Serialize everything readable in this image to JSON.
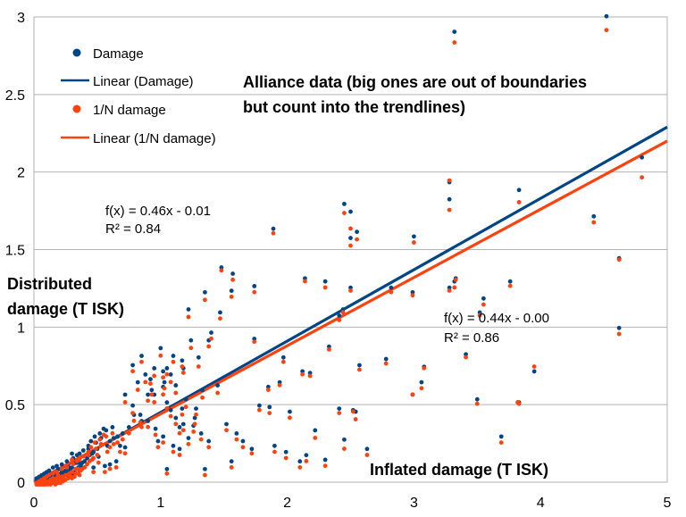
{
  "chart_data": {
    "type": "scatter",
    "title": "Alliance data (big ones are out of boundaries but count into the trendlines)",
    "title_lines": [
      "Alliance data (big ones are out of boundaries",
      "but count into the trendlines)"
    ],
    "xlabel": "Inflated damage (T ISK)",
    "ylabel_lines": [
      "Distributed",
      "damage (T ISK)"
    ],
    "xlim": [
      0,
      5
    ],
    "ylim": [
      0,
      3
    ],
    "x_ticks": [
      "0",
      "1",
      "2",
      "3",
      "4",
      "5"
    ],
    "y_ticks": [
      "0",
      "0.5",
      "1",
      "1.5",
      "2",
      "2.5",
      "3"
    ],
    "grid": "horizontal",
    "legend_position": "top-left",
    "legend": [
      {
        "label": "Damage",
        "kind": "marker",
        "color": "#004586"
      },
      {
        "label": "Linear (Damage)",
        "kind": "line",
        "color": "#004586"
      },
      {
        "label": "1/N damage",
        "kind": "marker",
        "color": "#ff420e"
      },
      {
        "label": "Linear (1/N damage)",
        "kind": "line",
        "color": "#ff420e"
      }
    ],
    "series": [
      {
        "name": "Damage",
        "color": "#004586",
        "x": [
          4.52,
          3.32,
          4.8,
          3.28,
          3.83,
          3.28,
          2.45,
          2.5,
          4.42,
          1.89,
          2.55,
          2.5,
          3.0,
          4.62,
          3.33,
          1.48,
          1.57,
          3.76,
          3.32,
          3.52,
          1.56,
          2.3,
          2.14,
          2.99,
          2.82,
          2.5,
          1.74,
          3.28,
          3.55,
          2.44,
          2.41,
          4.62,
          2.33,
          1.97,
          1.74,
          3.41,
          3.08,
          3.95,
          2.78,
          2.57,
          2.12,
          2.18,
          3.06,
          2.99,
          1.85,
          1.94,
          1.78,
          2.02,
          1.86,
          2.41,
          2.52,
          3.83,
          3.5,
          3.82,
          2.54,
          1.3,
          1.38,
          1.4,
          1.24,
          1.1,
          1.18,
          1.02,
          0.92,
          1.03,
          1.35,
          1.22,
          1.47,
          0.85,
          0.78,
          1.17,
          1.05,
          0.93,
          0.9,
          1.05,
          1.17,
          1.27,
          1.52,
          1.15,
          1.6,
          1.65,
          1.72,
          1.99,
          1.9,
          2.15,
          2.22,
          2.45,
          2.63,
          3.69,
          2.1,
          2.3,
          1.56,
          1.22,
          1.35,
          0.98,
          1.05,
          0.79,
          0.85,
          0.75,
          0.7,
          0.66,
          0.63,
          0.6,
          0.58,
          0.72,
          0.68,
          0.5,
          0.47,
          0.46,
          0.44,
          0.42,
          0.4,
          0.38,
          0.37,
          0.35,
          0.33,
          0.32,
          0.3,
          0.29,
          0.28,
          0.27,
          0.25,
          0.24,
          0.23,
          0.22,
          0.21,
          0.2,
          0.19,
          0.18,
          0.17,
          0.16,
          0.15,
          0.14,
          0.13,
          0.12,
          0.11,
          0.1,
          0.09,
          0.08,
          0.07,
          0.06,
          0.05,
          0.04,
          0.03,
          0.02,
          0.55,
          0.52,
          0.48,
          0.45,
          0.62,
          0.57,
          0.53,
          0.49,
          0.43,
          0.39,
          0.36,
          0.34,
          0.31,
          0.26,
          0.22,
          0.18,
          0.15,
          0.12,
          0.1,
          0.08,
          0.06,
          0.04,
          0.03,
          0.02,
          0.65,
          0.6,
          0.56,
          0.51,
          0.47,
          0.43,
          0.4,
          0.36,
          0.33,
          0.3,
          0.28,
          0.25,
          0.23,
          0.21,
          0.19,
          0.17,
          0.15,
          0.13,
          0.11,
          0.09,
          0.07,
          0.05,
          0.03,
          0.82,
          0.88,
          0.95,
          1.0,
          1.08,
          1.12,
          1.2,
          1.28,
          1.33,
          1.45,
          0.72,
          0.78,
          0.84,
          0.9,
          0.96,
          1.02,
          1.1,
          1.15,
          0.95,
          1.02,
          1.08,
          1.12,
          1.18,
          1.26,
          1.32,
          1.38,
          0.35,
          0.3,
          0.26,
          0.22,
          0.18,
          0.14,
          0.1,
          0.07
        ],
        "y": [
          2.99,
          2.89,
          2.08,
          1.92,
          1.87,
          1.81,
          1.78,
          1.73,
          1.7,
          1.62,
          1.6,
          1.56,
          1.57,
          1.43,
          1.3,
          1.37,
          1.33,
          1.28,
          1.28,
          1.08,
          1.22,
          1.28,
          1.3,
          1.21,
          1.24,
          1.24,
          1.25,
          1.24,
          1.17,
          1.1,
          1.06,
          0.98,
          0.86,
          0.79,
          0.91,
          0.81,
          0.73,
          0.7,
          0.78,
          0.74,
          0.7,
          0.69,
          0.63,
          0.55,
          0.6,
          0.63,
          0.48,
          0.44,
          0.47,
          0.46,
          0.45,
          0.5,
          0.52,
          0.5,
          0.44,
          0.79,
          0.9,
          0.95,
          0.9,
          0.8,
          0.72,
          0.7,
          0.65,
          0.63,
          1.21,
          1.1,
          1.08,
          0.8,
          0.74,
          0.77,
          0.72,
          0.58,
          0.55,
          0.5,
          0.46,
          0.4,
          0.36,
          0.34,
          0.3,
          0.25,
          0.2,
          0.18,
          0.22,
          0.16,
          0.32,
          0.26,
          0.2,
          0.28,
          0.12,
          0.13,
          0.12,
          0.27,
          0.07,
          0.25,
          0.07,
          0.42,
          0.38,
          0.34,
          0.3,
          0.28,
          0.27,
          0.25,
          0.22,
          0.21,
          0.22,
          0.2,
          0.18,
          0.17,
          0.16,
          0.14,
          0.12,
          0.11,
          0.09,
          0.08,
          0.07,
          0.05,
          0.04,
          0.06,
          0.05,
          0.04,
          0.04,
          0.03,
          0.02,
          0.02,
          0.01,
          0.02,
          0.01,
          0.01,
          0.0,
          0.02,
          0.01,
          0.01,
          0.0,
          0.01,
          0.0,
          0.01,
          0.0,
          0.0,
          0.0,
          0.0,
          0.0,
          0.0,
          0.0,
          0.0,
          0.33,
          0.3,
          0.28,
          0.25,
          0.34,
          0.32,
          0.27,
          0.24,
          0.22,
          0.19,
          0.17,
          0.16,
          0.14,
          0.12,
          0.1,
          0.09,
          0.08,
          0.06,
          0.05,
          0.04,
          0.03,
          0.02,
          0.01,
          0.01,
          0.12,
          0.1,
          0.09,
          0.15,
          0.08,
          0.2,
          0.12,
          0.06,
          0.11,
          0.17,
          0.08,
          0.06,
          0.05,
          0.04,
          0.07,
          0.03,
          0.04,
          0.03,
          0.02,
          0.02,
          0.01,
          0.01,
          0.01,
          0.63,
          0.68,
          0.72,
          0.85,
          0.68,
          0.61,
          0.52,
          0.46,
          0.58,
          0.61,
          0.55,
          0.48,
          0.42,
          0.38,
          0.33,
          0.28,
          0.22,
          0.2,
          0.55,
          0.6,
          0.45,
          0.4,
          0.36,
          0.35,
          0.3,
          0.25,
          0.11,
          0.08,
          0.06,
          0.05,
          0.04,
          0.03,
          0.02,
          0.01
        ]
      },
      {
        "name": "1/N damage",
        "color": "#ff420e",
        "x_same_as": "Damage",
        "y": [
          2.93,
          2.85,
          1.98,
          1.96,
          1.82,
          1.77,
          1.75,
          1.65,
          1.69,
          1.62,
          1.58,
          1.54,
          1.56,
          1.45,
          1.32,
          1.38,
          1.32,
          1.28,
          1.27,
          1.09,
          1.21,
          1.27,
          1.31,
          1.22,
          1.24,
          1.25,
          1.24,
          1.25,
          1.16,
          1.11,
          1.06,
          0.97,
          0.87,
          0.79,
          0.92,
          0.82,
          0.75,
          0.76,
          0.78,
          0.74,
          0.71,
          0.7,
          0.62,
          0.58,
          0.61,
          0.64,
          0.48,
          0.43,
          0.46,
          0.46,
          0.47,
          0.52,
          0.52,
          0.53,
          0.42,
          0.76,
          0.89,
          0.94,
          0.88,
          0.79,
          0.72,
          0.69,
          0.65,
          0.62,
          1.19,
          1.08,
          1.07,
          0.79,
          0.73,
          0.76,
          0.71,
          0.58,
          0.54,
          0.49,
          0.45,
          0.39,
          0.35,
          0.33,
          0.29,
          0.24,
          0.2,
          0.17,
          0.21,
          0.15,
          0.3,
          0.23,
          0.19,
          0.27,
          0.11,
          0.12,
          0.11,
          0.26,
          0.06,
          0.24,
          0.07,
          0.41,
          0.37,
          0.33,
          0.29,
          0.27,
          0.26,
          0.24,
          0.21,
          0.2,
          0.21,
          0.19,
          0.17,
          0.16,
          0.15,
          0.13,
          0.11,
          0.1,
          0.09,
          0.07,
          0.07,
          0.05,
          0.04,
          0.05,
          0.05,
          0.04,
          0.03,
          0.03,
          0.02,
          0.02,
          0.01,
          0.02,
          0.01,
          0.01,
          0.0,
          0.02,
          0.01,
          0.01,
          0.0,
          0.01,
          0.0,
          0.01,
          0.0,
          0.0,
          0.0,
          0.0,
          0.0,
          0.0,
          0.0,
          0.0,
          0.32,
          0.29,
          0.27,
          0.24,
          0.33,
          0.31,
          0.26,
          0.23,
          0.21,
          0.18,
          0.16,
          0.15,
          0.13,
          0.11,
          0.1,
          0.08,
          0.07,
          0.06,
          0.05,
          0.04,
          0.03,
          0.02,
          0.01,
          0.01,
          0.11,
          0.1,
          0.08,
          0.14,
          0.08,
          0.19,
          0.11,
          0.06,
          0.1,
          0.16,
          0.07,
          0.06,
          0.05,
          0.04,
          0.06,
          0.03,
          0.04,
          0.03,
          0.02,
          0.02,
          0.01,
          0.01,
          0.01,
          0.61,
          0.66,
          0.7,
          0.83,
          0.66,
          0.59,
          0.5,
          0.45,
          0.56,
          0.59,
          0.53,
          0.46,
          0.4,
          0.37,
          0.32,
          0.27,
          0.21,
          0.19,
          0.53,
          0.58,
          0.44,
          0.39,
          0.35,
          0.34,
          0.29,
          0.24,
          0.1,
          0.08,
          0.06,
          0.05,
          0.04,
          0.03,
          0.02,
          0.01
        ]
      }
    ],
    "trendlines": [
      {
        "name": "Linear (Damage)",
        "slope": 0.46,
        "intercept": -0.01,
        "color": "#004586"
      },
      {
        "name": "Linear (1/N damage)",
        "slope": 0.44,
        "intercept": 0.0,
        "color": "#ff420e"
      }
    ],
    "annotations": [
      {
        "line1": "f(x) = 0.46x - 0.01",
        "line2": "R² = 0.84"
      },
      {
        "line1": "f(x) = 0.44x - 0.00",
        "line2": "R² = 0.86"
      }
    ]
  }
}
